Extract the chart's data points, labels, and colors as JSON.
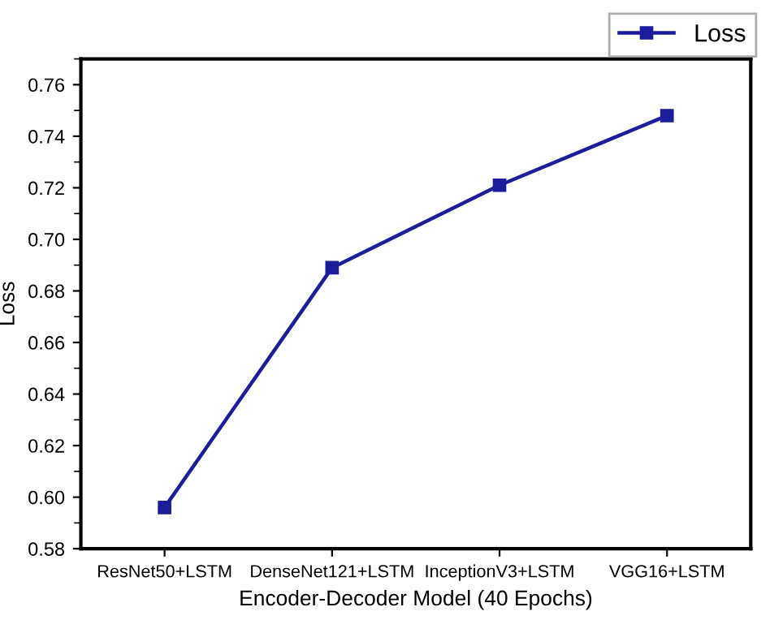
{
  "chart_data": {
    "type": "line",
    "xlabel": "Encoder-Decoder Model (40 Epochs)",
    "ylabel": "Loss",
    "categories": [
      "ResNet50+LSTM",
      "DenseNet121+LSTM",
      "InceptionV3+LSTM",
      "VGG16+LSTM"
    ],
    "series": [
      {
        "name": "Loss",
        "color": "#1c1c9c",
        "values": [
          0.596,
          0.689,
          0.721,
          0.748
        ]
      }
    ],
    "ylim": [
      0.58,
      0.77
    ],
    "yticks": [
      0.58,
      {
        "value": 0.6,
        "label": "0.60"
      },
      0.62,
      0.64,
      0.66,
      0.68,
      {
        "value": 0.7,
        "label": "0.70"
      },
      0.72,
      0.74,
      0.76
    ],
    "grid": false,
    "legend": "top right",
    "marker": "square",
    "line_style": "solid"
  }
}
